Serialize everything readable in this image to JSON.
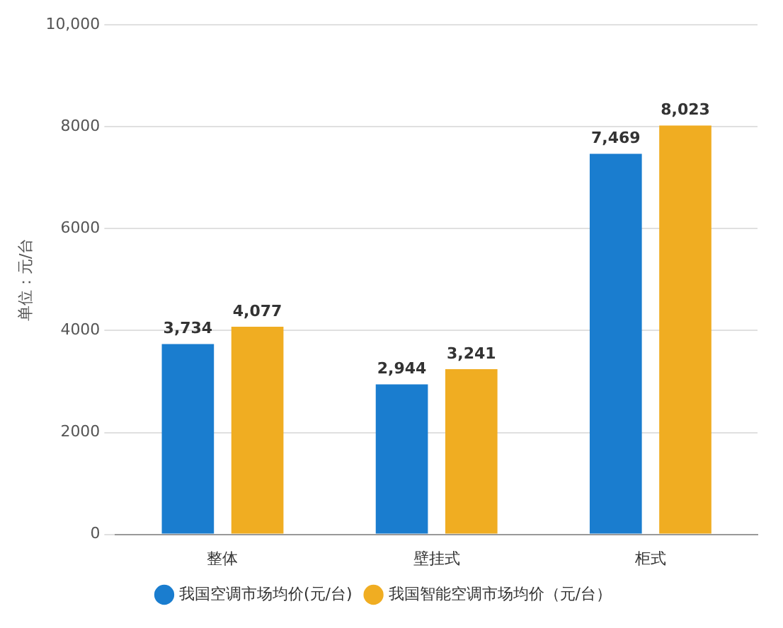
{
  "chart_data": {
    "type": "bar",
    "ylabel": "单位：元/台",
    "categories": [
      "整体",
      "壁挂式",
      "柜式"
    ],
    "series": [
      {
        "name": "我国空调市场均价(元/台)",
        "color": "#1a7dcf",
        "values": [
          3734,
          2944,
          7469
        ],
        "value_labels": [
          "3,734",
          "2,944",
          "7,469"
        ]
      },
      {
        "name": "我国智能空调市场均价（元/台）",
        "color": "#f0ad22",
        "values": [
          4077,
          3241,
          8023
        ],
        "value_labels": [
          "4,077",
          "3,241",
          "8,023"
        ]
      }
    ],
    "ylim": [
      0,
      10000
    ],
    "yticks": [
      0,
      2000,
      4000,
      6000,
      8000,
      {
        "value": 10000,
        "label": "10,000"
      }
    ],
    "grid": "y",
    "legend": "bottom",
    "marker": "circle"
  }
}
